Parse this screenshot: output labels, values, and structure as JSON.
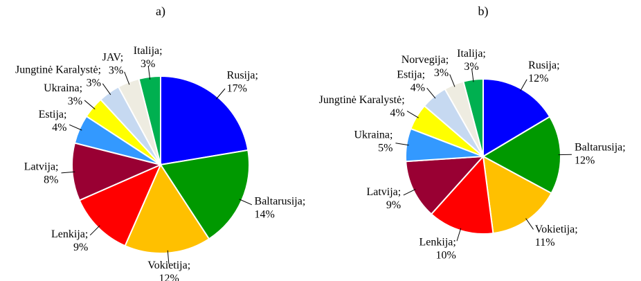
{
  "chart_data": [
    {
      "type": "pie",
      "title": "a)",
      "categories": [
        "Rusija;",
        "Baltarusija;",
        "Vokietija;",
        "Lenkija;",
        "Latvija;",
        "Estija;",
        "Ukraina;",
        "Jungtinė Karalystė;",
        "JAV;",
        "Italija;"
      ],
      "values": [
        17,
        14,
        12,
        9,
        8,
        4,
        3,
        3,
        3,
        3
      ],
      "value_labels": [
        "17%",
        "14%",
        "12%",
        "9%",
        "8%",
        "4%",
        "3%",
        "3%",
        "3%",
        "3%"
      ],
      "colors": [
        "#0000ff",
        "#009900",
        "#ffc000",
        "#ff0000",
        "#990033",
        "#3399ff",
        "#ffff00",
        "#c6d9f1",
        "#eeece1",
        "#00b050"
      ]
    },
    {
      "type": "pie",
      "title": "b)",
      "categories": [
        "Rusija;",
        "Baltarusija;",
        "Vokietija;",
        "Lenkija;",
        "Latvija;",
        "Ukraina;",
        "Jungtinė Karalystė;",
        "Estija;",
        "Norvegija;",
        "Italija;"
      ],
      "values": [
        12,
        12,
        11,
        10,
        9,
        5,
        4,
        4,
        3,
        3
      ],
      "value_labels": [
        "12%",
        "12%",
        "11%",
        "10%",
        "9%",
        "5%",
        "4%",
        "4%",
        "3%",
        "3%"
      ],
      "colors": [
        "#0000ff",
        "#009900",
        "#ffc000",
        "#ff0000",
        "#990033",
        "#3399ff",
        "#ffff00",
        "#c6d9f1",
        "#eeece1",
        "#00b050"
      ]
    }
  ]
}
